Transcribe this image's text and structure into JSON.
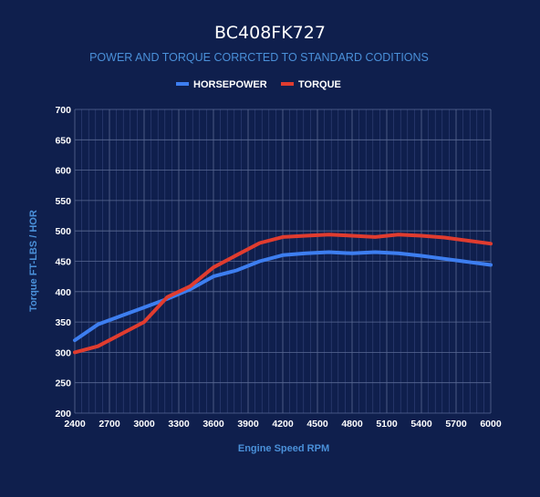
{
  "chart_data": {
    "type": "line",
    "title": "BC408FK727",
    "subtitle": "POWER AND TORQUE CORRCTED TO STANDARD CODITIONS",
    "xlabel": "Engine Speed RPM",
    "ylabel": "Torque FT-LBS / HOR",
    "xlim": [
      2400,
      6000
    ],
    "ylim": [
      200,
      700
    ],
    "x_ticks": [
      2400,
      2700,
      3000,
      3300,
      3600,
      3900,
      4200,
      4500,
      4800,
      5100,
      5400,
      5700,
      6000
    ],
    "y_ticks": [
      200,
      250,
      300,
      350,
      400,
      450,
      500,
      550,
      600,
      650,
      700
    ],
    "grid": true,
    "legend_position": "top",
    "background_color": "#0f1f4d",
    "series": [
      {
        "name": "HORSEPOWER",
        "color": "#3d7ef0",
        "x": [
          2400,
          2600,
          2800,
          3000,
          3200,
          3400,
          3600,
          3800,
          4000,
          4200,
          4400,
          4600,
          4800,
          5000,
          5200,
          5400,
          5600,
          5800,
          6000
        ],
        "values": [
          320,
          346,
          360,
          374,
          388,
          404,
          425,
          435,
          450,
          460,
          463,
          465,
          463,
          465,
          463,
          459,
          454,
          449,
          444
        ]
      },
      {
        "name": "TORQUE",
        "color": "#e03c2f",
        "x": [
          2400,
          2600,
          2800,
          3000,
          3200,
          3400,
          3600,
          3800,
          4000,
          4200,
          4400,
          4600,
          4800,
          5000,
          5200,
          5400,
          5600,
          5800,
          6000
        ],
        "values": [
          300,
          310,
          330,
          350,
          391,
          409,
          440,
          460,
          480,
          490,
          492,
          494,
          492,
          490,
          494,
          492,
          489,
          484,
          479
        ]
      }
    ]
  }
}
